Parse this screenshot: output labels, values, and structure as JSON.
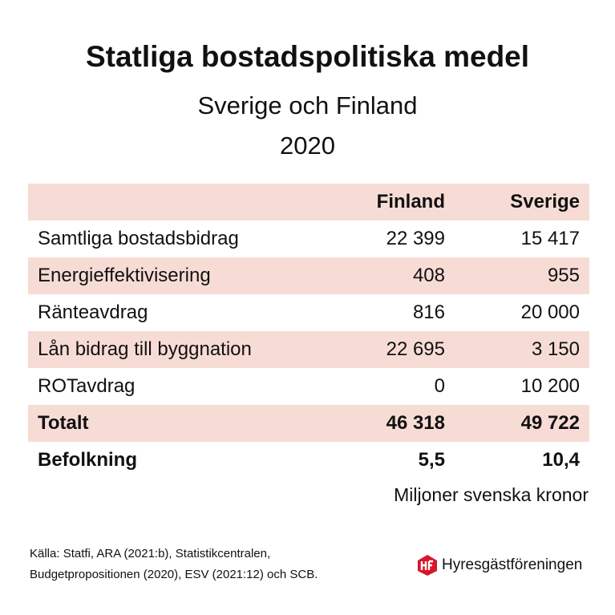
{
  "title": "Statliga bostadspolitiska medel",
  "subtitle": [
    "Sverige och Finland",
    "2020"
  ],
  "table": {
    "columns": [
      "Finland",
      "Sverige"
    ],
    "rows": [
      [
        "Samtliga bostadsbidrag",
        "22 399",
        "15 417"
      ],
      [
        "Energieffektivisering",
        "408",
        "955"
      ],
      [
        "Ränteavdrag",
        "816",
        "20 000"
      ],
      [
        "Lån bidrag till byggnation",
        "22 695",
        "3 150"
      ],
      [
        "ROTavdrag",
        "0",
        "10 200"
      ]
    ],
    "total": [
      "Totalt",
      "46 318",
      "49 722"
    ],
    "population": [
      "Befolkning",
      "5,5",
      "10,4"
    ]
  },
  "unit": "Miljoner svenska kronor",
  "source": [
    "Källa: Statfi, ARA (2021:b), Statistikcentralen,",
    "Budgetpropositionen (2020), ESV (2021:12) och SCB."
  ],
  "logo": "Hyresgästföreningen"
}
